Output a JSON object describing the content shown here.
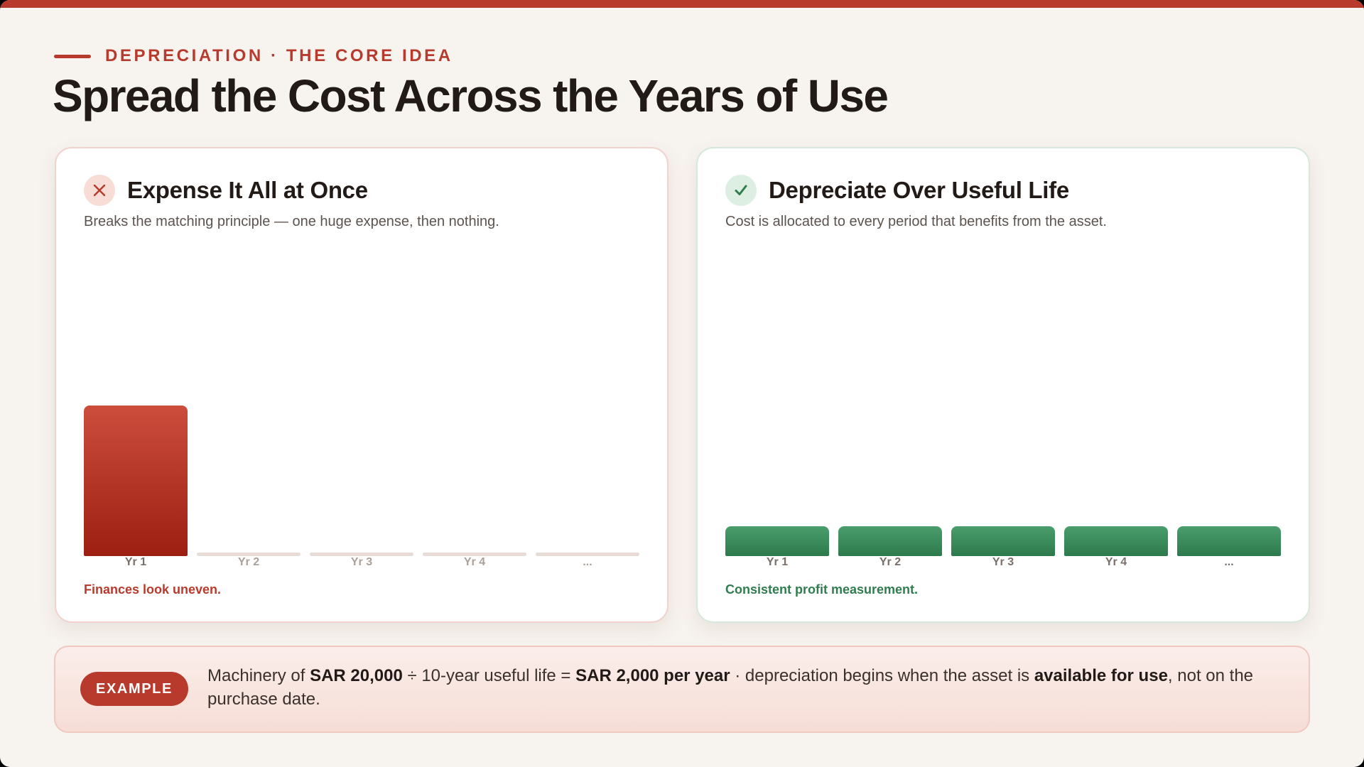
{
  "header": {
    "eyebrow": "DEPRECIATION · THE CORE IDEA",
    "title": "Spread the Cost Across the Years of Use"
  },
  "colors": {
    "accent": "#b83a2d",
    "good": "#2f7d4f",
    "background": "#f7f3ef"
  },
  "panels": {
    "left": {
      "status_icon": "x-icon",
      "title": "Expense It All at Once",
      "subtitle": "Breaks the matching principle — one huge expense, then nothing.",
      "footer": "Finances look uneven."
    },
    "right": {
      "status_icon": "check-icon",
      "title": "Depreciate Over Useful Life",
      "subtitle": "Cost is allocated to every period that benefits from the asset.",
      "footer": "Consistent profit measurement."
    }
  },
  "chart_data": [
    {
      "type": "bar",
      "categories": [
        "Yr 1",
        "Yr 2",
        "Yr 3",
        "Yr 4",
        "..."
      ],
      "values": [
        100,
        0,
        0,
        0,
        0
      ],
      "ylim": [
        0,
        100
      ]
    },
    {
      "type": "bar",
      "categories": [
        "Yr 1",
        "Yr 2",
        "Yr 3",
        "Yr 4",
        "..."
      ],
      "values": [
        20,
        20,
        20,
        20,
        20
      ],
      "ylim": [
        0,
        100
      ]
    }
  ],
  "example": {
    "badge": "EXAMPLE",
    "t1": "Machinery of ",
    "b1": "SAR 20,000",
    "t2": " ÷ 10-year useful life = ",
    "b2": "SAR 2,000 per year",
    "t3": " · depreciation begins when the asset is ",
    "b3": "available for use",
    "t4": ", not on the purchase date."
  }
}
